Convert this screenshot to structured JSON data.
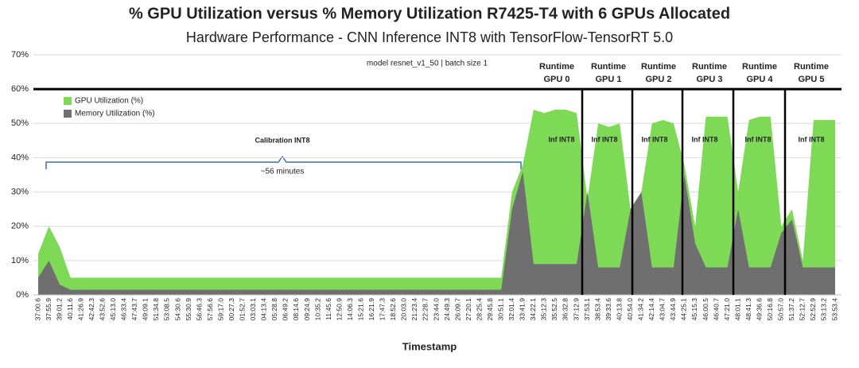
{
  "chart_data": {
    "type": "area",
    "title": "% GPU Utilization versus % Memory Utilization R7425-T4 with 6 GPUs Allocated",
    "subtitle": "Hardware Performance - CNN Inference INT8 with TensorFlow-TensorRT 5.0",
    "x_label": "Timestamp",
    "model_note": "model resnet_v1_50 | batch size 1",
    "calibration_label": "Calibration INT8",
    "duration_label": "~56 minutes",
    "runtime_labels": [
      [
        "Runtime",
        "GPU 0"
      ],
      [
        "Runtime",
        "GPU 1"
      ],
      [
        "Runtime",
        "GPU 2"
      ],
      [
        "Runtime",
        "GPU 3"
      ],
      [
        "Runtime",
        "GPU 4"
      ],
      [
        "Runtime",
        "GPU 5"
      ]
    ],
    "inference_labels": [
      "Inf INT8",
      "Inf INT8",
      "Inf INT8",
      "Inf INT8",
      "Inf INT8",
      "Inf INT8"
    ],
    "categories": [
      "37:00.6",
      "37:55.9",
      "39:01.2",
      "40:11.6",
      "41:26.9",
      "42:42.3",
      "43:52.6",
      "45:13.0",
      "46:33.4",
      "47:43.7",
      "49:09.1",
      "51:34.8",
      "53:08.5",
      "54:30.6",
      "55:30.9",
      "56:46.3",
      "57:56.6",
      "59:17.0",
      "00:27.3",
      "01:52.7",
      "03:03.1",
      "04:13.4",
      "05:28.8",
      "06:49.2",
      "08:14.6",
      "09:24.9",
      "10:35.2",
      "11:45.6",
      "12:50.9",
      "14:06.3",
      "15:21.6",
      "16:21.9",
      "17:47.3",
      "18:52.6",
      "20:03.0",
      "21:23.4",
      "22:28.7",
      "23:44.0",
      "24:49.3",
      "26:09.7",
      "27:20.1",
      "28:25.4",
      "29:45.8",
      "30:51.1",
      "32:01.4",
      "33:41.9",
      "34:22.1",
      "35:12.3",
      "35:52.5",
      "36:32.8",
      "37:12.9",
      "37:53.1",
      "38:53.4",
      "39:33.6",
      "40:13.8",
      "40:54.0",
      "41:34.2",
      "42:14.4",
      "43:04.7",
      "43:44.9",
      "44:25.1",
      "45:15.3",
      "46:00.5",
      "46:40.7",
      "47:21.0",
      "48:01.1",
      "48:41.3",
      "49:36.6",
      "50:16.8",
      "50:57.0",
      "51:37.2",
      "52:12.7",
      "52:52.9",
      "53:13.2",
      "53:53.4"
    ],
    "series": [
      {
        "name": "GPU Utilization (%)",
        "color": "#7ed957",
        "values": [
          12,
          20,
          14,
          5,
          5,
          5,
          5,
          5,
          5,
          5,
          5,
          5,
          5,
          5,
          5,
          5,
          5,
          5,
          5,
          5,
          5,
          5,
          5,
          5,
          5,
          5,
          5,
          5,
          5,
          5,
          5,
          5,
          5,
          5,
          5,
          5,
          5,
          5,
          5,
          5,
          5,
          5,
          5,
          5,
          30,
          38,
          54,
          53,
          54,
          54,
          53,
          28,
          50,
          49,
          50,
          25,
          30,
          50,
          51,
          50,
          38,
          20,
          52,
          52,
          52,
          30,
          51,
          52,
          52,
          20,
          25,
          10,
          51,
          51,
          51
        ]
      },
      {
        "name": "Memory Utilization (%)",
        "color": "#6f6f6f",
        "values": [
          5,
          10,
          3,
          1.5,
          1.5,
          1.5,
          1.5,
          1.5,
          1.5,
          1.5,
          1.5,
          1.5,
          1.5,
          1.5,
          1.5,
          1.5,
          1.5,
          1.5,
          1.5,
          1.5,
          1.5,
          1.5,
          1.5,
          1.5,
          1.5,
          1.5,
          1.5,
          1.5,
          1.5,
          1.5,
          1.5,
          1.5,
          1.5,
          1.5,
          1.5,
          1.5,
          1.5,
          1.5,
          1.5,
          1.5,
          1.5,
          1.5,
          1.5,
          1.5,
          25,
          36,
          9,
          9,
          9,
          9,
          9,
          30,
          8,
          8,
          8,
          25,
          30,
          8,
          8,
          8,
          35,
          15,
          8,
          8,
          8,
          25,
          8,
          8,
          8,
          18,
          22,
          8,
          8,
          8,
          8
        ]
      }
    ],
    "ylim": [
      0,
      70
    ],
    "yticks": [
      {
        "value": 0,
        "label": "0%"
      },
      {
        "value": 10,
        "label": "10%"
      },
      {
        "value": 20,
        "label": "20%"
      },
      {
        "value": 30,
        "label": "30%"
      },
      {
        "value": 40,
        "label": "40%"
      },
      {
        "value": 50,
        "label": "50%"
      },
      {
        "value": 60,
        "label": "60%"
      },
      {
        "value": 70,
        "label": "70%"
      }
    ],
    "grid": true,
    "legend": "upper left"
  }
}
